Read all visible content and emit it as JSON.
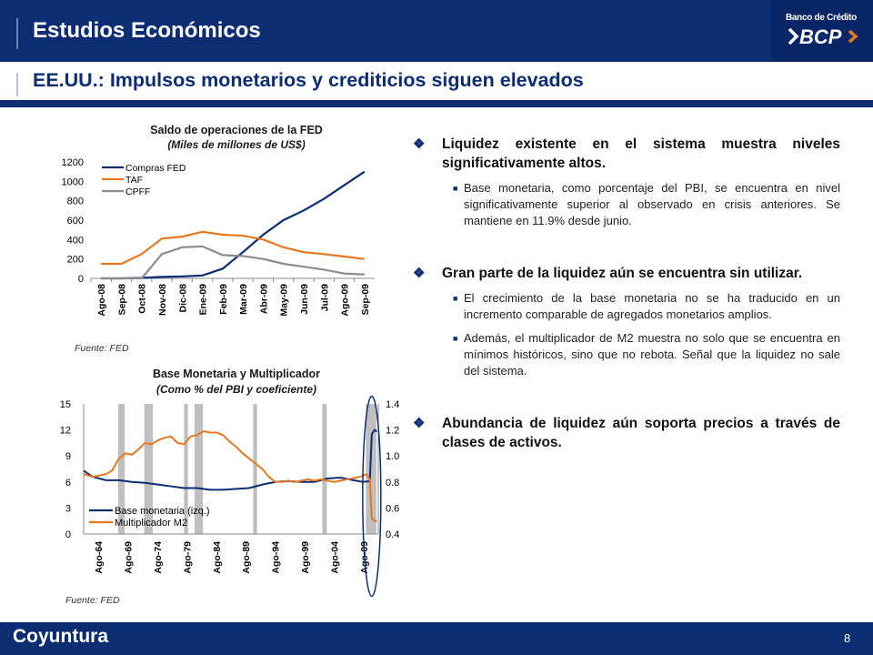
{
  "header": {
    "title": "Estudios Económicos",
    "bank_name": "Banco de Crédito",
    "bank_short": "BCP"
  },
  "subtitle": "EE.UU.: Impulsos monetarios y crediticios siguen elevados",
  "footer": {
    "section": "Coyuntura",
    "page": "8"
  },
  "colors": {
    "navy": "#0c2d72",
    "orange": "#e87722",
    "gray": "#8c8c8c",
    "recession": "#bfbfbf"
  },
  "chart1": {
    "title": "Saldo de operaciones de la FED",
    "subtitle": "(Miles de millones de US$)",
    "source": "Fuente: FED"
  },
  "chart2": {
    "title": "Base Monetaria y Multiplicador",
    "subtitle": "(Como % del PBI y coeficiente)",
    "source": "Fuente: FED"
  },
  "chart_data": [
    {
      "type": "line",
      "title": "Saldo de operaciones de la FED",
      "subtitle": "(Miles de millones de US$)",
      "x": [
        "Ago-08",
        "Sep-08",
        "Oct-08",
        "Nov-08",
        "Dic-08",
        "Ene-09",
        "Feb-09",
        "Mar-09",
        "Abr-09",
        "May-09",
        "Jun-09",
        "Jul-09",
        "Ago-09",
        "Sep-09"
      ],
      "ylim": [
        0,
        1200
      ],
      "yticks": [
        0,
        200,
        400,
        600,
        800,
        1000,
        1200
      ],
      "legend_position": "top-left",
      "series": [
        {
          "name": "Compras FED",
          "color": "#0c2d72",
          "values": [
            0,
            0,
            5,
            15,
            20,
            30,
            100,
            270,
            450,
            600,
            700,
            820,
            960,
            1100
          ]
        },
        {
          "name": "TAF",
          "color": "#e87722",
          "values": [
            150,
            150,
            250,
            410,
            430,
            480,
            450,
            440,
            400,
            320,
            270,
            250,
            225,
            200
          ]
        },
        {
          "name": "CPFF",
          "color": "#8c8c8c",
          "values": [
            0,
            0,
            0,
            250,
            320,
            330,
            240,
            230,
            200,
            150,
            120,
            90,
            50,
            40
          ]
        }
      ]
    },
    {
      "type": "line",
      "title": "Base Monetaria y Multiplicador",
      "subtitle": "(Como % del PBI y coeficiente)",
      "x": [
        "Ago-64",
        "Ago-69",
        "Ago-74",
        "Ago-79",
        "Ago-84",
        "Ago-89",
        "Ago-94",
        "Ago-99",
        "Ago-04",
        "Ago-09"
      ],
      "ylim_left": [
        0,
        15
      ],
      "yticks_left": [
        0,
        3,
        6,
        9,
        12,
        15
      ],
      "ylim_right": [
        0.4,
        1.4
      ],
      "yticks_right": [
        "0.4",
        "0.6",
        "0.8",
        "1.0",
        "1.2",
        "1.4"
      ],
      "legend_position": "bottom-left",
      "recessions": [
        [
          1969.9,
          1970.9
        ],
        [
          1973.9,
          1975.2
        ],
        [
          1980.0,
          1980.6
        ],
        [
          1981.6,
          1982.9
        ],
        [
          1990.6,
          1991.2
        ],
        [
          2001.2,
          2001.9
        ],
        [
          2007.9,
          2009.5
        ]
      ],
      "series": [
        {
          "name": "Base monetaria (izq.)",
          "color": "#0c2d72",
          "axis": "left",
          "points": [
            [
              1964.6,
              7.3
            ],
            [
              1966,
              6.6
            ],
            [
              1968,
              6.2
            ],
            [
              1970,
              6.2
            ],
            [
              1972,
              6.0
            ],
            [
              1974,
              5.9
            ],
            [
              1976,
              5.7
            ],
            [
              1978,
              5.5
            ],
            [
              1980,
              5.3
            ],
            [
              1982,
              5.3
            ],
            [
              1984,
              5.1
            ],
            [
              1986,
              5.1
            ],
            [
              1988,
              5.2
            ],
            [
              1990,
              5.3
            ],
            [
              1992,
              5.7
            ],
            [
              1994,
              6.0
            ],
            [
              1996,
              6.1
            ],
            [
              1998,
              6.0
            ],
            [
              2000,
              6.0
            ],
            [
              2002,
              6.4
            ],
            [
              2004,
              6.5
            ],
            [
              2006,
              6.2
            ],
            [
              2007.5,
              6.0
            ],
            [
              2008.5,
              6.1
            ],
            [
              2008.8,
              11.5
            ],
            [
              2009.2,
              12.0
            ],
            [
              2009.6,
              11.8
            ]
          ]
        },
        {
          "name": "Multiplicador M2",
          "color": "#e87722",
          "axis": "right",
          "points": [
            [
              1964.6,
              0.86
            ],
            [
              1966,
              0.84
            ],
            [
              1968,
              0.86
            ],
            [
              1969,
              0.89
            ],
            [
              1970,
              0.98
            ],
            [
              1971,
              1.02
            ],
            [
              1972,
              1.01
            ],
            [
              1973,
              1.05
            ],
            [
              1974,
              1.1
            ],
            [
              1975,
              1.09
            ],
            [
              1976,
              1.12
            ],
            [
              1977,
              1.14
            ],
            [
              1978,
              1.15
            ],
            [
              1979,
              1.1
            ],
            [
              1980,
              1.09
            ],
            [
              1981,
              1.15
            ],
            [
              1982,
              1.16
            ],
            [
              1983,
              1.19
            ],
            [
              1984,
              1.18
            ],
            [
              1985,
              1.18
            ],
            [
              1986,
              1.16
            ],
            [
              1987,
              1.11
            ],
            [
              1988,
              1.07
            ],
            [
              1989,
              1.02
            ],
            [
              1990,
              0.98
            ],
            [
              1991,
              0.94
            ],
            [
              1992,
              0.9
            ],
            [
              1993,
              0.84
            ],
            [
              1994,
              0.8
            ],
            [
              1995,
              0.8
            ],
            [
              1996,
              0.81
            ],
            [
              1997,
              0.8
            ],
            [
              1998,
              0.81
            ],
            [
              1999,
              0.82
            ],
            [
              2000,
              0.81
            ],
            [
              2001,
              0.82
            ],
            [
              2002,
              0.81
            ],
            [
              2003,
              0.8
            ],
            [
              2004,
              0.81
            ],
            [
              2005,
              0.82
            ],
            [
              2006,
              0.83
            ],
            [
              2007,
              0.84
            ],
            [
              2008,
              0.86
            ],
            [
              2008.5,
              0.82
            ],
            [
              2008.8,
              0.52
            ],
            [
              2009.3,
              0.5
            ],
            [
              2009.6,
              0.5
            ]
          ]
        }
      ]
    }
  ],
  "bullets": [
    {
      "text": "Liquidez existente en el sistema muestra niveles significativamente altos.",
      "sub": [
        "Base monetaria, como porcentaje del PBI, se encuentra en nivel significativamente superior al observado en crisis anteriores. Se mantiene en 11.9% desde junio."
      ]
    },
    {
      "text": "Gran parte de la liquidez aún se encuentra sin utilizar.",
      "sub": [
        "El crecimiento de la base monetaria no se ha traducido en un incremento comparable de agregados monetarios amplios.",
        "Además, el multiplicador de M2 muestra no solo que se encuentra en mínimos históricos, sino que no rebota. Señal que la liquidez no sale del sistema."
      ]
    },
    {
      "text": "Abundancia de liquidez aún soporta precios a través de clases de activos.",
      "sub": []
    }
  ]
}
